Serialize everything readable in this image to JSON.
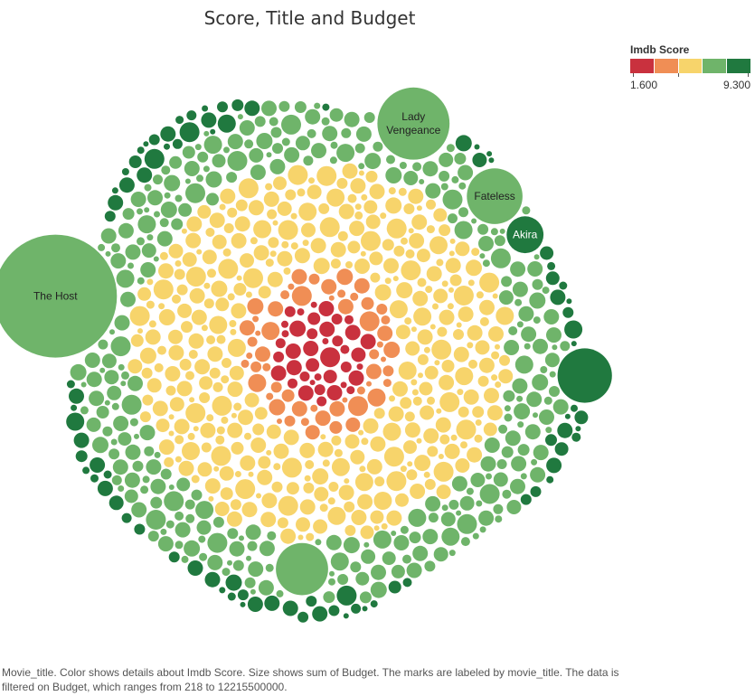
{
  "chart_data": {
    "type": "packed-bubble",
    "title": "Score, Title and Budget",
    "legend": {
      "title": "Imdb Score",
      "min_label": "1.600",
      "max_label": "9.300",
      "placement": "top-right",
      "colors": [
        "#c9313e",
        "#f08e55",
        "#f7d46b",
        "#6fb46a",
        "#20793f"
      ]
    },
    "labeled_bubbles": [
      {
        "title": "The Host",
        "label_lines": [
          "The Host"
        ],
        "budget": 12215500000,
        "color": "#6fb46a"
      },
      {
        "title": "Lady Vengeance",
        "label_lines": [
          "Lady",
          "Vengeance"
        ],
        "budget": 4200000000,
        "color": "#6fb46a"
      },
      {
        "title": "Fateless",
        "label_lines": [
          "Fateless"
        ],
        "budget": 2500000000,
        "color": "#6fb46a"
      },
      {
        "title": "Akira",
        "label_lines": [
          "Akira"
        ],
        "budget": 1100000000,
        "color": "#20793f"
      }
    ],
    "unlabeled_large_bubbles": [
      {
        "budget": 2400000000,
        "color": "#20793f"
      },
      {
        "budget": 2200000000,
        "color": "#6fb46a"
      }
    ],
    "budget_filter_range": [
      218,
      12215500000
    ],
    "color_rings": [
      {
        "color": "#c9313e",
        "share": 0.04
      },
      {
        "color": "#f08e55",
        "share": 0.06
      },
      {
        "color": "#f7d46b",
        "share": 0.42
      },
      {
        "color": "#6fb46a",
        "share": 0.4
      },
      {
        "color": "#20793f",
        "share": 0.08
      }
    ]
  },
  "caption": "Movie_title.  Color shows details about Imdb Score.  Size shows sum of Budget.  The marks are labeled by movie_title.  The data is filtered on Budget, which ranges from 218 to 12215500000."
}
